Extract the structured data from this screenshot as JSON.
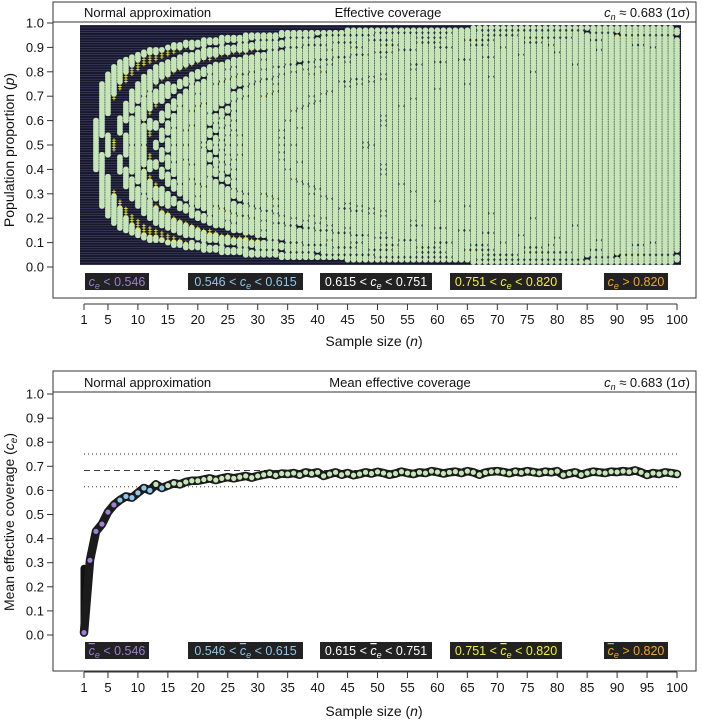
{
  "colors": {
    "background_dark": "#17172b",
    "point_fill": "#c6e5b8",
    "point_outline": "#1d1d1d",
    "cat_low": "#9b7fd6",
    "cat_midlow": "#8ec7ea",
    "cat_mid": "#ffffff",
    "cat_midhigh": "#f3f03a",
    "cat_high": "#f5a623",
    "label_box": "#222222"
  },
  "chart_data": [
    {
      "type": "heatmap",
      "panel_left_title": "Normal approximation",
      "title": "Effective coverage",
      "nominal_prefix": "c",
      "nominal_sub": "n",
      "nominal_value": " ≈ 0.683 (1σ)",
      "xlabel": "Sample size (",
      "xlabel_var": "n",
      "xlabel_end": ")",
      "ylabel": "Population proportion (",
      "ylabel_var": "p",
      "ylabel_end": ")",
      "x_range": [
        1,
        100
      ],
      "y_range": [
        0,
        1
      ],
      "x_ticks": [
        "1",
        "5",
        "10",
        "15",
        "20",
        "25",
        "30",
        "35",
        "40",
        "45",
        "50",
        "55",
        "60",
        "65",
        "70",
        "75",
        "80",
        "85",
        "90",
        "95",
        "100"
      ],
      "y_ticks": [
        "0.0",
        "0.1",
        "0.2",
        "0.3",
        "0.4",
        "0.5",
        "0.6",
        "0.7",
        "0.8",
        "0.9",
        "1.0"
      ],
      "grid": {
        "n_min": 1,
        "n_max": 100,
        "p_min": 0.01,
        "p_max": 0.99,
        "p_step": 0.01
      },
      "legend": [
        {
          "pre": "",
          "var": "c",
          "sub": "e",
          "post": " < 0.546",
          "color": "#9b7fd6"
        },
        {
          "pre": "0.546 < ",
          "var": "c",
          "sub": "e",
          "post": " < 0.615",
          "color": "#8ec7ea"
        },
        {
          "pre": "0.615 < ",
          "var": "c",
          "sub": "e",
          "post": " < 0.751",
          "color": "#ffffff"
        },
        {
          "pre": "0.751 < ",
          "var": "c",
          "sub": "e",
          "post": " < 0.820",
          "color": "#f3f03a"
        },
        {
          "pre": "",
          "var": "c",
          "sub": "e",
          "post": " > 0.820",
          "color": "#f5a623"
        }
      ]
    },
    {
      "type": "line",
      "panel_left_title": "Normal approximation",
      "title": "Mean effective coverage",
      "nominal_prefix": "c",
      "nominal_sub": "n",
      "nominal_value": " ≈ 0.683 (1σ)",
      "xlabel": "Sample size (",
      "xlabel_var": "n",
      "xlabel_end": ")",
      "ylabel": "Mean effective coverage (",
      "ylabel_var": "c",
      "ylabel_sub": "e",
      "ylabel_end": ")",
      "x_range": [
        1,
        100
      ],
      "y_range": [
        0,
        1
      ],
      "x_ticks": [
        "1",
        "5",
        "10",
        "15",
        "20",
        "25",
        "30",
        "35",
        "40",
        "45",
        "50",
        "55",
        "60",
        "65",
        "70",
        "75",
        "80",
        "85",
        "90",
        "95",
        "100"
      ],
      "y_ticks": [
        "0.0",
        "0.1",
        "0.2",
        "0.3",
        "0.4",
        "0.5",
        "0.6",
        "0.7",
        "0.8",
        "0.9",
        "1.0"
      ],
      "reference_lines": [
        {
          "y": 0.683,
          "style": "dashed"
        },
        {
          "y": 0.615,
          "style": "dotted"
        },
        {
          "y": 0.751,
          "style": "dotted"
        }
      ],
      "series": [
        {
          "x": [
            1,
            2,
            3,
            4,
            5,
            6,
            7,
            8,
            9,
            10,
            11,
            12,
            13,
            14,
            15,
            16,
            17,
            18,
            19,
            20,
            21,
            22,
            23,
            24,
            25,
            26,
            27,
            28,
            29,
            30,
            31,
            32,
            33,
            34,
            35,
            36,
            37,
            38,
            39,
            40,
            41,
            42,
            43,
            44,
            45,
            46,
            47,
            48,
            49,
            50,
            51,
            52,
            53,
            54,
            55,
            56,
            57,
            58,
            59,
            60,
            61,
            62,
            63,
            64,
            65,
            66,
            67,
            68,
            69,
            70,
            71,
            72,
            73,
            74,
            75,
            76,
            77,
            78,
            79,
            80,
            81,
            82,
            83,
            84,
            85,
            86,
            87,
            88,
            89,
            90,
            91,
            92,
            93,
            94,
            95,
            96,
            97,
            98,
            99,
            100
          ],
          "y": [
            0.01,
            0.31,
            0.43,
            0.46,
            0.51,
            0.54,
            0.56,
            0.575,
            0.57,
            0.59,
            0.61,
            0.6,
            0.625,
            0.61,
            0.62,
            0.63,
            0.625,
            0.635,
            0.64,
            0.64,
            0.645,
            0.65,
            0.643,
            0.65,
            0.655,
            0.65,
            0.655,
            0.66,
            0.653,
            0.66,
            0.665,
            0.67,
            0.663,
            0.67,
            0.668,
            0.672,
            0.665,
            0.675,
            0.67,
            0.675,
            0.66,
            0.668,
            0.675,
            0.665,
            0.672,
            0.663,
            0.668,
            0.675,
            0.67,
            0.677,
            0.672,
            0.665,
            0.67,
            0.678,
            0.672,
            0.668,
            0.675,
            0.672,
            0.68,
            0.676,
            0.67,
            0.675,
            0.678,
            0.672,
            0.68,
            0.675,
            0.665,
            0.674,
            0.678,
            0.68,
            0.676,
            0.671,
            0.678,
            0.674,
            0.68,
            0.676,
            0.672,
            0.678,
            0.675,
            0.68,
            0.664,
            0.67,
            0.675,
            0.665,
            0.672,
            0.678,
            0.675,
            0.672,
            0.678,
            0.676,
            0.68,
            0.677,
            0.683,
            0.675,
            0.664,
            0.672,
            0.668,
            0.675,
            0.672,
            0.668
          ]
        }
      ],
      "legend": [
        {
          "pre": "",
          "var": "c",
          "sub": "e",
          "post": " < 0.546",
          "color": "#9b7fd6",
          "bar": true
        },
        {
          "pre": "0.546 < ",
          "var": "c",
          "sub": "e",
          "post": " < 0.615",
          "color": "#8ec7ea",
          "bar": true
        },
        {
          "pre": "0.615 < ",
          "var": "c",
          "sub": "e",
          "post": " < 0.751",
          "color": "#ffffff",
          "bar": true
        },
        {
          "pre": "0.751 < ",
          "var": "c",
          "sub": "e",
          "post": " < 0.820",
          "color": "#f3f03a",
          "bar": true
        },
        {
          "pre": "",
          "var": "c",
          "sub": "e",
          "post": " > 0.820",
          "color": "#f5a623",
          "bar": true
        }
      ]
    }
  ]
}
